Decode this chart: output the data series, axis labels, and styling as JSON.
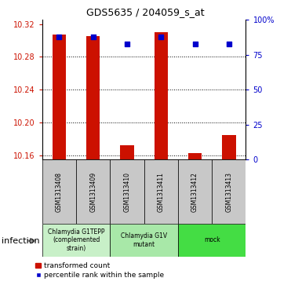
{
  "title": "GDS5635 / 204059_s_at",
  "samples": [
    "GSM1313408",
    "GSM1313409",
    "GSM1313410",
    "GSM1313411",
    "GSM1313412",
    "GSM1313413"
  ],
  "transformed_counts": [
    10.307,
    10.305,
    10.172,
    10.31,
    10.163,
    10.185
  ],
  "percentile_ranks": [
    88,
    88,
    83,
    88,
    83,
    83
  ],
  "ylim_left": [
    10.155,
    10.325
  ],
  "ylim_right": [
    0,
    100
  ],
  "yticks_left": [
    10.16,
    10.2,
    10.24,
    10.28,
    10.32
  ],
  "yticks_right": [
    0,
    25,
    50,
    75,
    100
  ],
  "ytick_labels_right": [
    "0",
    "25",
    "50",
    "75",
    "100%"
  ],
  "bar_color": "#cc1100",
  "dot_color": "#0000cc",
  "baseline": 10.155,
  "groups": [
    {
      "label": "Chlamydia G1TEPP\n(complemented\nstrain)",
      "samples": [
        0,
        1
      ],
      "color": "#c8f0c8"
    },
    {
      "label": "Chlamydia G1V\nmutant",
      "samples": [
        2,
        3
      ],
      "color": "#a8e8a8"
    },
    {
      "label": "mock",
      "samples": [
        4,
        5
      ],
      "color": "#44dd44"
    }
  ],
  "factor_label": "infection",
  "tick_color_left": "#cc1100",
  "tick_color_right": "#0000cc",
  "bar_width": 0.4,
  "sample_box_color": "#c8c8c8"
}
